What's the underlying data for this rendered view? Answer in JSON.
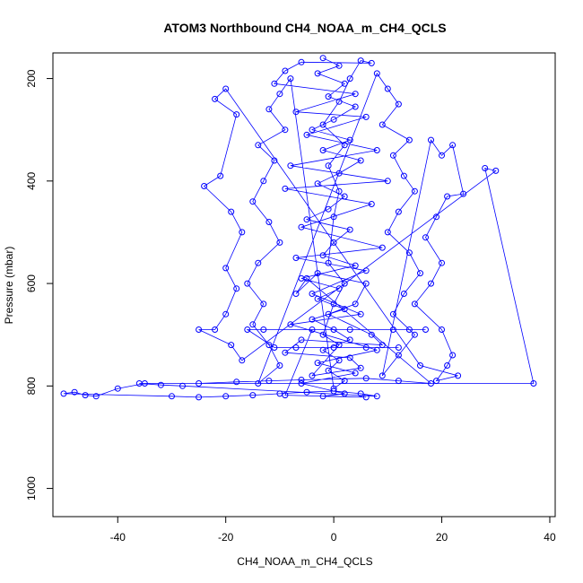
{
  "chart_data": {
    "type": "scatter",
    "title": "ATOM3 Northbound CH4_NOAA_m_CH4_QCLS",
    "xlabel": "CH4_NOAA_m_CH4_QCLS",
    "ylabel": "Pressure (mbar)",
    "xlim": [
      -52,
      41
    ],
    "ylim": [
      1055,
      150
    ],
    "y_reversed": true,
    "x_ticks": [
      -40,
      -20,
      0,
      20,
      40
    ],
    "y_ticks": [
      200,
      400,
      600,
      800,
      1000
    ],
    "grid": false,
    "legend": "none",
    "marker": "open-circle",
    "connect_points": true,
    "color": "#0000ff",
    "series": [
      {
        "points": [
          [
            -2,
            160
          ],
          [
            1,
            175
          ],
          [
            -3,
            190
          ],
          [
            2,
            210
          ],
          [
            -1,
            235
          ],
          [
            4,
            255
          ],
          [
            0,
            280
          ],
          [
            -4,
            300
          ],
          [
            3,
            320
          ],
          [
            -2,
            340
          ],
          [
            5,
            360
          ],
          [
            1,
            385
          ],
          [
            -3,
            405
          ],
          [
            2,
            430
          ],
          [
            -1,
            455
          ],
          [
            -5,
            475
          ],
          [
            3,
            495
          ],
          [
            0,
            520
          ],
          [
            -2,
            545
          ],
          [
            4,
            565
          ],
          [
            -6,
            590
          ],
          [
            1,
            610
          ],
          [
            -3,
            630
          ],
          [
            2,
            650
          ],
          [
            -4,
            670
          ],
          [
            0,
            690
          ],
          [
            3,
            710
          ],
          [
            -2,
            730
          ],
          [
            1,
            750
          ],
          [
            -1,
            770
          ],
          [
            2,
            790
          ],
          [
            0,
            805
          ],
          [
            -8,
            200
          ],
          [
            -10,
            230
          ],
          [
            -12,
            260
          ],
          [
            -9,
            300
          ],
          [
            -14,
            330
          ],
          [
            -11,
            360
          ],
          [
            -13,
            400
          ],
          [
            -15,
            440
          ],
          [
            -12,
            480
          ],
          [
            -10,
            520
          ],
          [
            -14,
            560
          ],
          [
            -16,
            600
          ],
          [
            -13,
            640
          ],
          [
            -15,
            680
          ],
          [
            -12,
            720
          ],
          [
            -10,
            760
          ],
          [
            -14,
            795
          ],
          [
            8,
            190
          ],
          [
            10,
            220
          ],
          [
            12,
            250
          ],
          [
            9,
            290
          ],
          [
            14,
            320
          ],
          [
            11,
            350
          ],
          [
            13,
            390
          ],
          [
            15,
            420
          ],
          [
            12,
            460
          ],
          [
            10,
            500
          ],
          [
            14,
            540
          ],
          [
            16,
            580
          ],
          [
            13,
            620
          ],
          [
            11,
            660
          ],
          [
            15,
            700
          ],
          [
            12,
            740
          ],
          [
            9,
            780
          ],
          [
            18,
            320
          ],
          [
            20,
            350
          ],
          [
            22,
            330
          ],
          [
            24,
            425
          ],
          [
            21,
            430
          ],
          [
            19,
            470
          ],
          [
            17,
            510
          ],
          [
            20,
            560
          ],
          [
            18,
            600
          ],
          [
            15,
            640
          ],
          [
            20,
            690
          ],
          [
            22,
            740
          ],
          [
            21,
            760
          ],
          [
            19,
            790
          ],
          [
            23,
            780
          ],
          [
            16,
            760
          ],
          [
            -20,
            220
          ],
          [
            -22,
            240
          ],
          [
            -18,
            270
          ],
          [
            -21,
            390
          ],
          [
            -24,
            410
          ],
          [
            -19,
            460
          ],
          [
            -17,
            500
          ],
          [
            -20,
            570
          ],
          [
            -18,
            610
          ],
          [
            -20,
            660
          ],
          [
            -22,
            690
          ],
          [
            -25,
            690
          ],
          [
            -19,
            720
          ],
          [
            -17,
            750
          ],
          [
            30,
            380
          ],
          [
            28,
            375
          ],
          [
            37,
            795
          ],
          [
            -35,
            795
          ],
          [
            -40,
            805
          ],
          [
            -44,
            820
          ],
          [
            -46,
            818
          ],
          [
            -48,
            812
          ],
          [
            -50,
            815
          ],
          [
            -30,
            820
          ],
          [
            -25,
            822
          ],
          [
            -20,
            820
          ],
          [
            -15,
            818
          ],
          [
            -10,
            815
          ],
          [
            -5,
            812
          ],
          [
            0,
            810
          ],
          [
            5,
            815
          ],
          [
            8,
            820
          ],
          [
            -28,
            800
          ],
          [
            -32,
            798
          ],
          [
            -36,
            795
          ],
          [
            -25,
            795
          ],
          [
            -18,
            792
          ],
          [
            -12,
            790
          ],
          [
            -6,
            788
          ],
          [
            6,
            785
          ],
          [
            12,
            790
          ],
          [
            18,
            795
          ],
          [
            -5,
            590
          ],
          [
            -7,
            620
          ],
          [
            -3,
            580
          ],
          [
            6,
            600
          ],
          [
            4,
            640
          ],
          [
            -1,
            660
          ],
          [
            7,
            700
          ],
          [
            9,
            720
          ],
          [
            -6,
            710
          ],
          [
            -9,
            735
          ],
          [
            3,
            745
          ],
          [
            5,
            765
          ],
          [
            -4,
            780
          ],
          [
            1,
            720
          ],
          [
            -2,
            700
          ],
          [
            0,
            640
          ],
          [
            2,
            600
          ],
          [
            -1,
            560
          ],
          [
            0,
            470
          ],
          [
            1,
            420
          ],
          [
            -1,
            370
          ],
          [
            2,
            330
          ],
          [
            -2,
            290
          ],
          [
            1,
            245
          ],
          [
            3,
            200
          ],
          [
            5,
            165
          ],
          [
            7,
            170
          ],
          [
            -6,
            168
          ],
          [
            -9,
            185
          ],
          [
            -11,
            210
          ],
          [
            4,
            230
          ],
          [
            -7,
            265
          ],
          [
            6,
            275
          ],
          [
            -5,
            310
          ],
          [
            8,
            340
          ],
          [
            -8,
            370
          ],
          [
            10,
            400
          ],
          [
            -9,
            415
          ],
          [
            7,
            445
          ],
          [
            -6,
            490
          ],
          [
            9,
            530
          ],
          [
            -7,
            550
          ],
          [
            6,
            575
          ],
          [
            -4,
            620
          ],
          [
            5,
            660
          ],
          [
            -8,
            680
          ],
          [
            8,
            730
          ],
          [
            -3,
            755
          ],
          [
            4,
            775
          ],
          [
            -6,
            795
          ],
          [
            2,
            815
          ],
          [
            -2,
            820
          ],
          [
            6,
            822
          ],
          [
            -9,
            818
          ],
          [
            -4,
            690
          ],
          [
            3,
            690
          ],
          [
            11,
            690
          ],
          [
            14,
            690
          ],
          [
            17,
            690
          ],
          [
            -13,
            690
          ],
          [
            -16,
            690
          ],
          [
            -11,
            725
          ],
          [
            -7,
            725
          ],
          [
            0,
            725
          ],
          [
            6,
            725
          ],
          [
            12,
            725
          ]
        ]
      }
    ]
  }
}
